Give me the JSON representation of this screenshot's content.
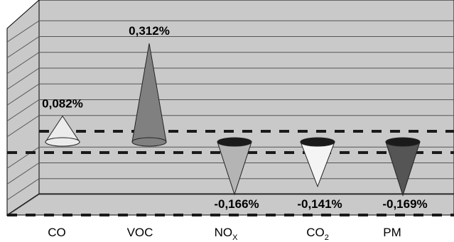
{
  "chart_data": {
    "type": "bar",
    "style": "3d-cone",
    "categories": [
      {
        "main": "CO",
        "sub": ""
      },
      {
        "main": "VOC",
        "sub": ""
      },
      {
        "main": "NO",
        "sub": "X"
      },
      {
        "main": "CO",
        "sub": "2"
      },
      {
        "main": "PM",
        "sub": ""
      }
    ],
    "values": [
      0.082,
      0.312,
      -0.166,
      -0.141,
      -0.169
    ],
    "value_labels": [
      "0,082%",
      "0,312%",
      "-0,166%",
      "-0,141%",
      "-0,169%"
    ],
    "cone_colors": [
      "#ececec",
      "#808080",
      "#b4b4b4",
      "#f4f4f4",
      "#555555"
    ],
    "ylim": [
      -0.2,
      0.35
    ],
    "grid": true,
    "legend": "none",
    "colors": {
      "wall": "#c9c9c9",
      "floor": "#c9c9c9",
      "gridline": "#555555",
      "zeroline": "#1a1a1a"
    }
  }
}
